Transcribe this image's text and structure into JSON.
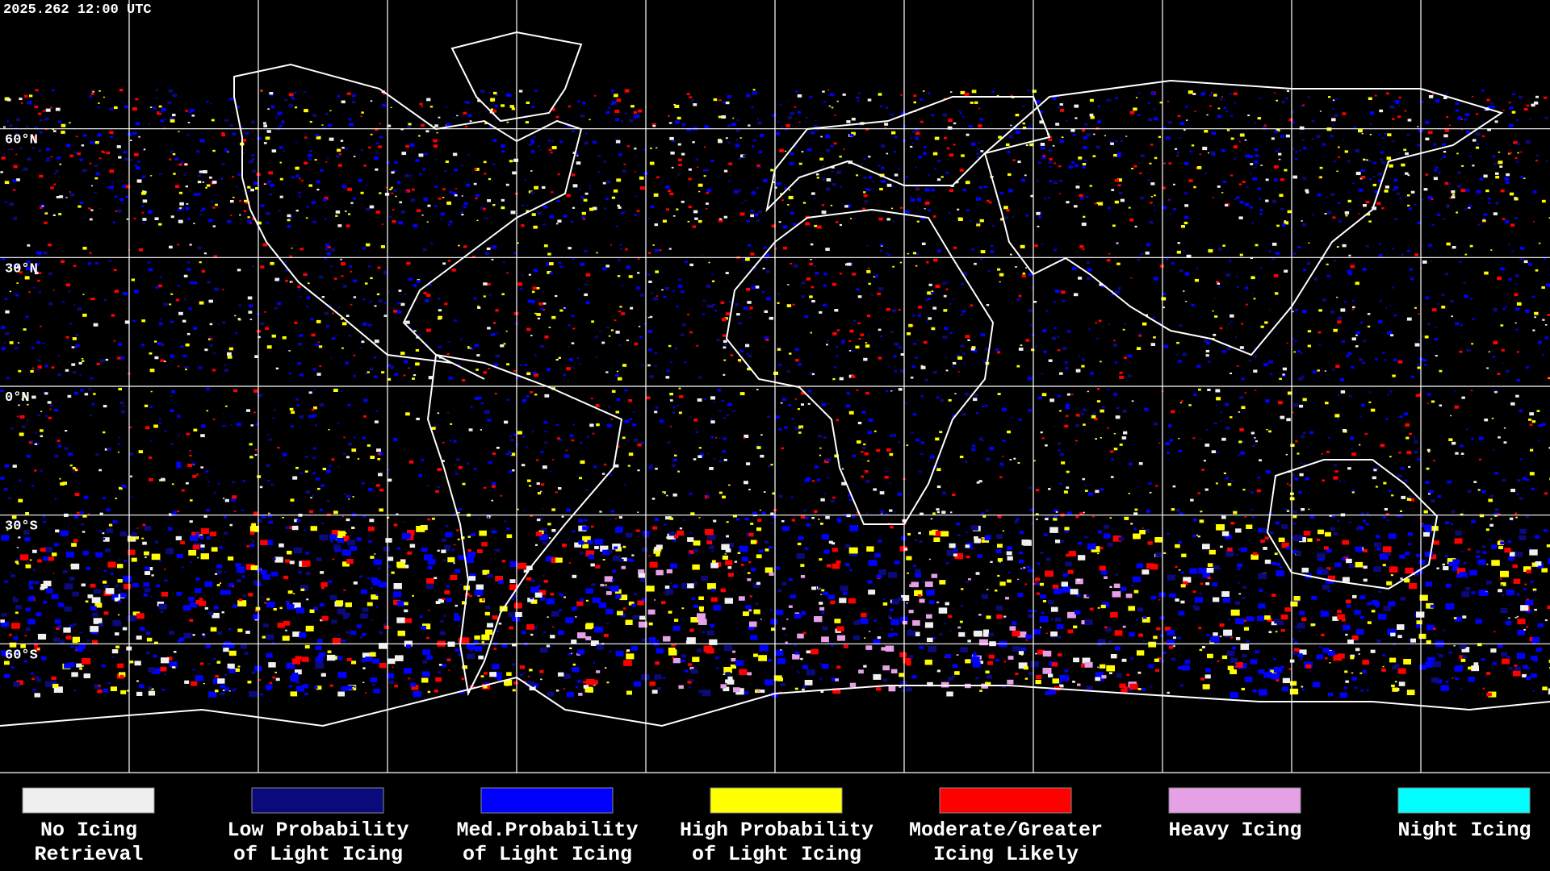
{
  "header": {
    "timestamp": "2025.262 12:00 UTC"
  },
  "map": {
    "latitude_labels": [
      "60°N",
      "30°N",
      "0°N",
      "30°S",
      "60°S"
    ]
  },
  "legend": {
    "items": [
      {
        "lines": [
          "No Icing",
          "Retrieval"
        ],
        "color": "#f0f0f0"
      },
      {
        "lines": [
          "Low Probability",
          "of Light Icing"
        ],
        "color": "#0a0a7a"
      },
      {
        "lines": [
          "Med.Probability",
          "of Light Icing"
        ],
        "color": "#0000ff"
      },
      {
        "lines": [
          "High Probability",
          "of Light Icing"
        ],
        "color": "#ffff00"
      },
      {
        "lines": [
          "Moderate/Greater",
          "Icing Likely"
        ],
        "color": "#ff0000"
      },
      {
        "lines": [
          "Heavy Icing"
        ],
        "color": "#e6a0e6"
      },
      {
        "lines": [
          "Night Icing"
        ],
        "color": "#00ffff"
      }
    ]
  }
}
